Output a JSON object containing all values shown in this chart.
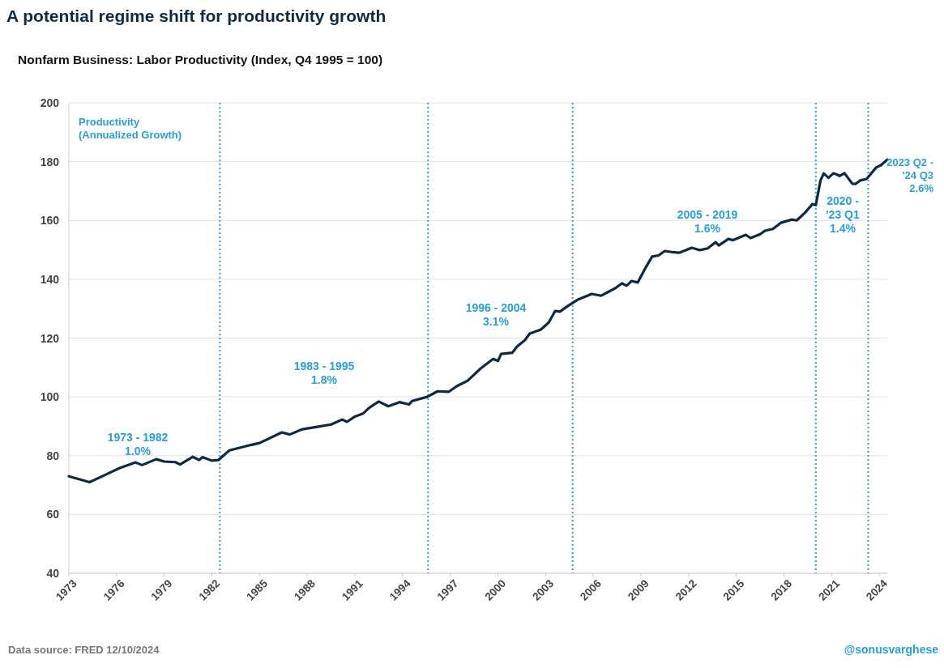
{
  "chart_data": {
    "type": "line",
    "title": "A potential regime shift for productivity growth",
    "subtitle": "Nonfarm Business: Labor Productivity (Index, Q4 1995 = 100)",
    "series": [
      {
        "color": "#0d2a45",
        "x": [
          1973.0,
          1974.3,
          1975.3,
          1976.2,
          1977.2,
          1977.6,
          1978.5,
          1979.0,
          1979.7,
          1980.0,
          1980.8,
          1981.2,
          1981.4,
          1982.0,
          1982.4,
          1983.1,
          1984.5,
          1985.0,
          1986.4,
          1986.9,
          1987.7,
          1988.7,
          1989.5,
          1990.2,
          1990.5,
          1991.0,
          1991.5,
          1991.9,
          1992.5,
          1993.1,
          1993.8,
          1994.4,
          1994.6,
          1995.55,
          1996.2,
          1996.9,
          1997.4,
          1998.1,
          1998.9,
          1999.7,
          2000.0,
          2000.2,
          2000.9,
          2001.2,
          2001.7,
          2002.0,
          2002.7,
          2003.2,
          2003.6,
          2003.9,
          2004.4,
          2005.0,
          2005.9,
          2006.5,
          2007.4,
          2007.8,
          2008.1,
          2008.4,
          2008.8,
          2009.3,
          2009.7,
          2010.1,
          2010.5,
          2011.0,
          2011.4,
          2012.2,
          2012.7,
          2013.2,
          2013.7,
          2013.9,
          2014.5,
          2014.8,
          2015.6,
          2015.9,
          2016.5,
          2016.8,
          2017.3,
          2017.8,
          2018.5,
          2018.8,
          2019.3,
          2019.8,
          2020.0,
          2020.3,
          2020.5,
          2020.8,
          2021.1,
          2021.3,
          2021.5,
          2021.8,
          2022.3,
          2022.5,
          2022.8,
          2023.2,
          2023.8,
          2024.1,
          2024.5
        ],
        "values": [
          73.0,
          71,
          73.5,
          75.8,
          77.7,
          76.8,
          78.8,
          78,
          77.8,
          77,
          79.6,
          78.5,
          79.5,
          78.3,
          78.5,
          81.8,
          83.7,
          84.3,
          87.9,
          87.2,
          89,
          89.9,
          90.6,
          92.3,
          91.5,
          93.3,
          94.3,
          96.3,
          98.4,
          96.8,
          98.2,
          97.4,
          98.6,
          100,
          101.9,
          101.7,
          103.6,
          105.5,
          109.6,
          112.9,
          112.2,
          114.6,
          115,
          117.1,
          119.3,
          121.5,
          122.9,
          125.3,
          129.2,
          129,
          130.9,
          133,
          135,
          134.4,
          137,
          138.6,
          137.8,
          139.4,
          138.9,
          144,
          147.7,
          148.1,
          149.6,
          149.2,
          149,
          150.7,
          149.9,
          150.5,
          152.6,
          151.5,
          153.7,
          153.3,
          155.1,
          154,
          155.3,
          156.5,
          157.1,
          159.2,
          160.3,
          160,
          162.5,
          165.6,
          165.2,
          173.6,
          176,
          174.5,
          176,
          175.7,
          175.1,
          176.1,
          172.5,
          172.4,
          173.6,
          174.1,
          178,
          178.8,
          180.7
        ]
      }
    ],
    "xlim": [
      1973,
      2024.5
    ],
    "xticks": [
      1973,
      1976,
      1979,
      1982,
      1985,
      1988,
      1991,
      1994,
      1997,
      2000,
      2003,
      2006,
      2009,
      2012,
      2015,
      2018,
      2021,
      2024
    ],
    "ylim": [
      40,
      200
    ],
    "yticks": [
      40,
      60,
      80,
      100,
      120,
      140,
      160,
      180,
      200
    ],
    "grid": "y",
    "line_style": "solid",
    "marker": "none",
    "ref_lines": [
      {
        "axis": "x",
        "value": 1982.5,
        "color": "#2a9fd8",
        "line_style": "dotted"
      },
      {
        "axis": "x",
        "value": 1995.6,
        "color": "#2a9fd8",
        "line_style": "dotted"
      },
      {
        "axis": "x",
        "value": 2004.7,
        "color": "#2a9fd8",
        "line_style": "dotted"
      },
      {
        "axis": "x",
        "value": 2020.0,
        "color": "#2a9fd8",
        "line_style": "dotted"
      },
      {
        "axis": "x",
        "value": 2023.3,
        "color": "#2a9fd8",
        "line_style": "dotted"
      }
    ],
    "annotations": [
      "Productivity\n(Annualized Growth)",
      "2023 Q2 -\n'24 Q3\n2.6%",
      "Data source: FRED   12/10/2024",
      "@sonusvarghese",
      "1973 - 1982\n1.0%",
      "1983 - 1995\n1.8%",
      "1996 - 2004\n3.1%",
      "2005 - 2019\n1.6%",
      "2020 -\n'23 Q1\n1.4%"
    ]
  }
}
